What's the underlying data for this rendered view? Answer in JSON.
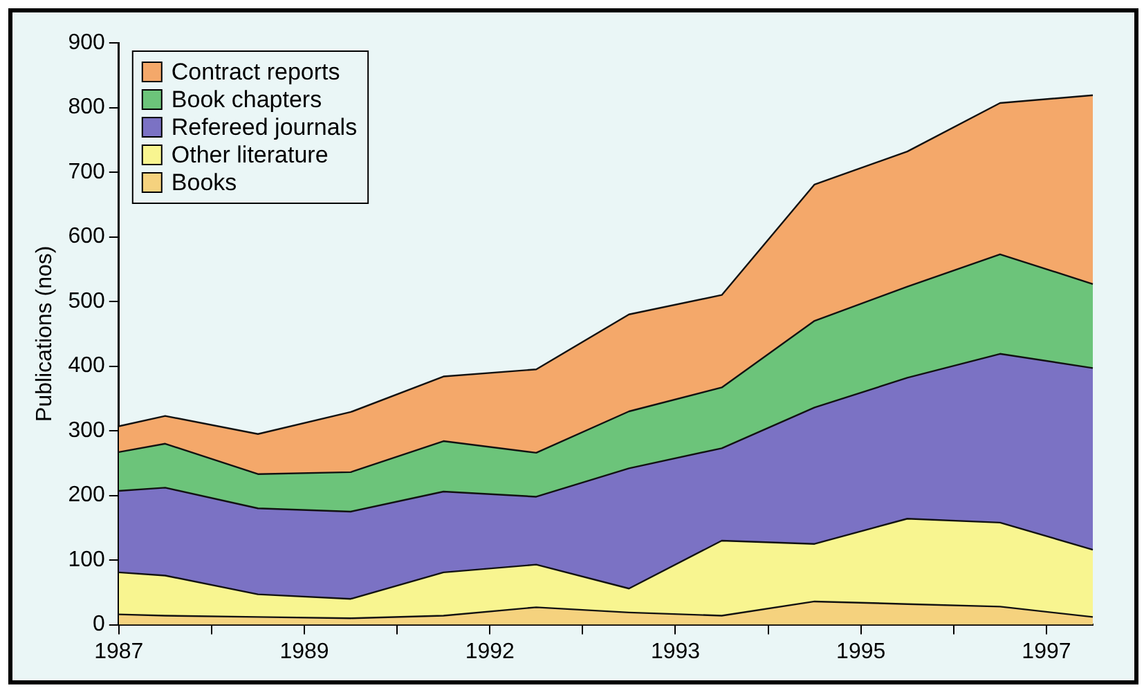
{
  "chart_data": {
    "type": "area",
    "stacked": true,
    "ylabel": "Publications (nos)",
    "categories": [
      "1987",
      null,
      null,
      null,
      null,
      null,
      null,
      null,
      "1989",
      null,
      null,
      null,
      null,
      null,
      null,
      null,
      "1992",
      null,
      null,
      null,
      null,
      null,
      null,
      null,
      "1993",
      null,
      null,
      null,
      null,
      null,
      null,
      null,
      "1995",
      null,
      null,
      null,
      null,
      null,
      null,
      null,
      "1997",
      null,
      null
    ],
    "ylim": [
      0,
      900
    ],
    "yticks": [
      0,
      100,
      200,
      300,
      400,
      500,
      600,
      700,
      800,
      900
    ],
    "grid": false,
    "legend": "top left",
    "series": [
      {
        "name": "Books",
        "color": "#f5d27e",
        "values": [
          16,
          null,
          14,
          null,
          null,
          null,
          12,
          null,
          null,
          null,
          10,
          null,
          null,
          null,
          14,
          null,
          null,
          null,
          27,
          null,
          null,
          null,
          19,
          null,
          null,
          null,
          14,
          null,
          null,
          null,
          36,
          null,
          null,
          null,
          32,
          null,
          null,
          null,
          28,
          null,
          null,
          null,
          12
        ]
      },
      {
        "name": "Other literature",
        "color": "#f8f590",
        "values": [
          65,
          null,
          62,
          null,
          null,
          null,
          35,
          null,
          null,
          null,
          30,
          null,
          null,
          null,
          67,
          null,
          null,
          null,
          66,
          null,
          null,
          null,
          37,
          null,
          null,
          null,
          116,
          null,
          null,
          null,
          89,
          null,
          null,
          null,
          132,
          null,
          null,
          null,
          130,
          null,
          null,
          null,
          104
        ]
      },
      {
        "name": "Refereed journals",
        "color": "#7b72c4",
        "values": [
          126,
          null,
          136,
          null,
          null,
          null,
          133,
          null,
          null,
          null,
          135,
          null,
          null,
          null,
          125,
          null,
          null,
          null,
          105,
          null,
          null,
          null,
          186,
          null,
          null,
          null,
          143,
          null,
          null,
          null,
          211,
          null,
          null,
          null,
          218,
          null,
          null,
          null,
          261,
          null,
          null,
          null,
          281
        ]
      },
      {
        "name": "Book chapters",
        "color": "#6cc47a",
        "values": [
          60,
          null,
          68,
          null,
          null,
          null,
          53,
          null,
          null,
          null,
          61,
          null,
          null,
          null,
          78,
          null,
          null,
          null,
          68,
          null,
          null,
          null,
          88,
          null,
          null,
          null,
          94,
          null,
          null,
          null,
          134,
          null,
          null,
          null,
          141,
          null,
          null,
          null,
          154,
          null,
          null,
          null,
          130
        ]
      },
      {
        "name": "Contract reports",
        "color": "#f4a86a",
        "values": [
          40,
          null,
          43,
          null,
          null,
          null,
          62,
          null,
          null,
          null,
          93,
          null,
          null,
          null,
          100,
          null,
          null,
          null,
          129,
          null,
          null,
          null,
          150,
          null,
          null,
          null,
          143,
          null,
          null,
          null,
          211,
          null,
          null,
          null,
          209,
          null,
          null,
          null,
          234,
          null,
          null,
          null,
          292
        ]
      }
    ]
  }
}
